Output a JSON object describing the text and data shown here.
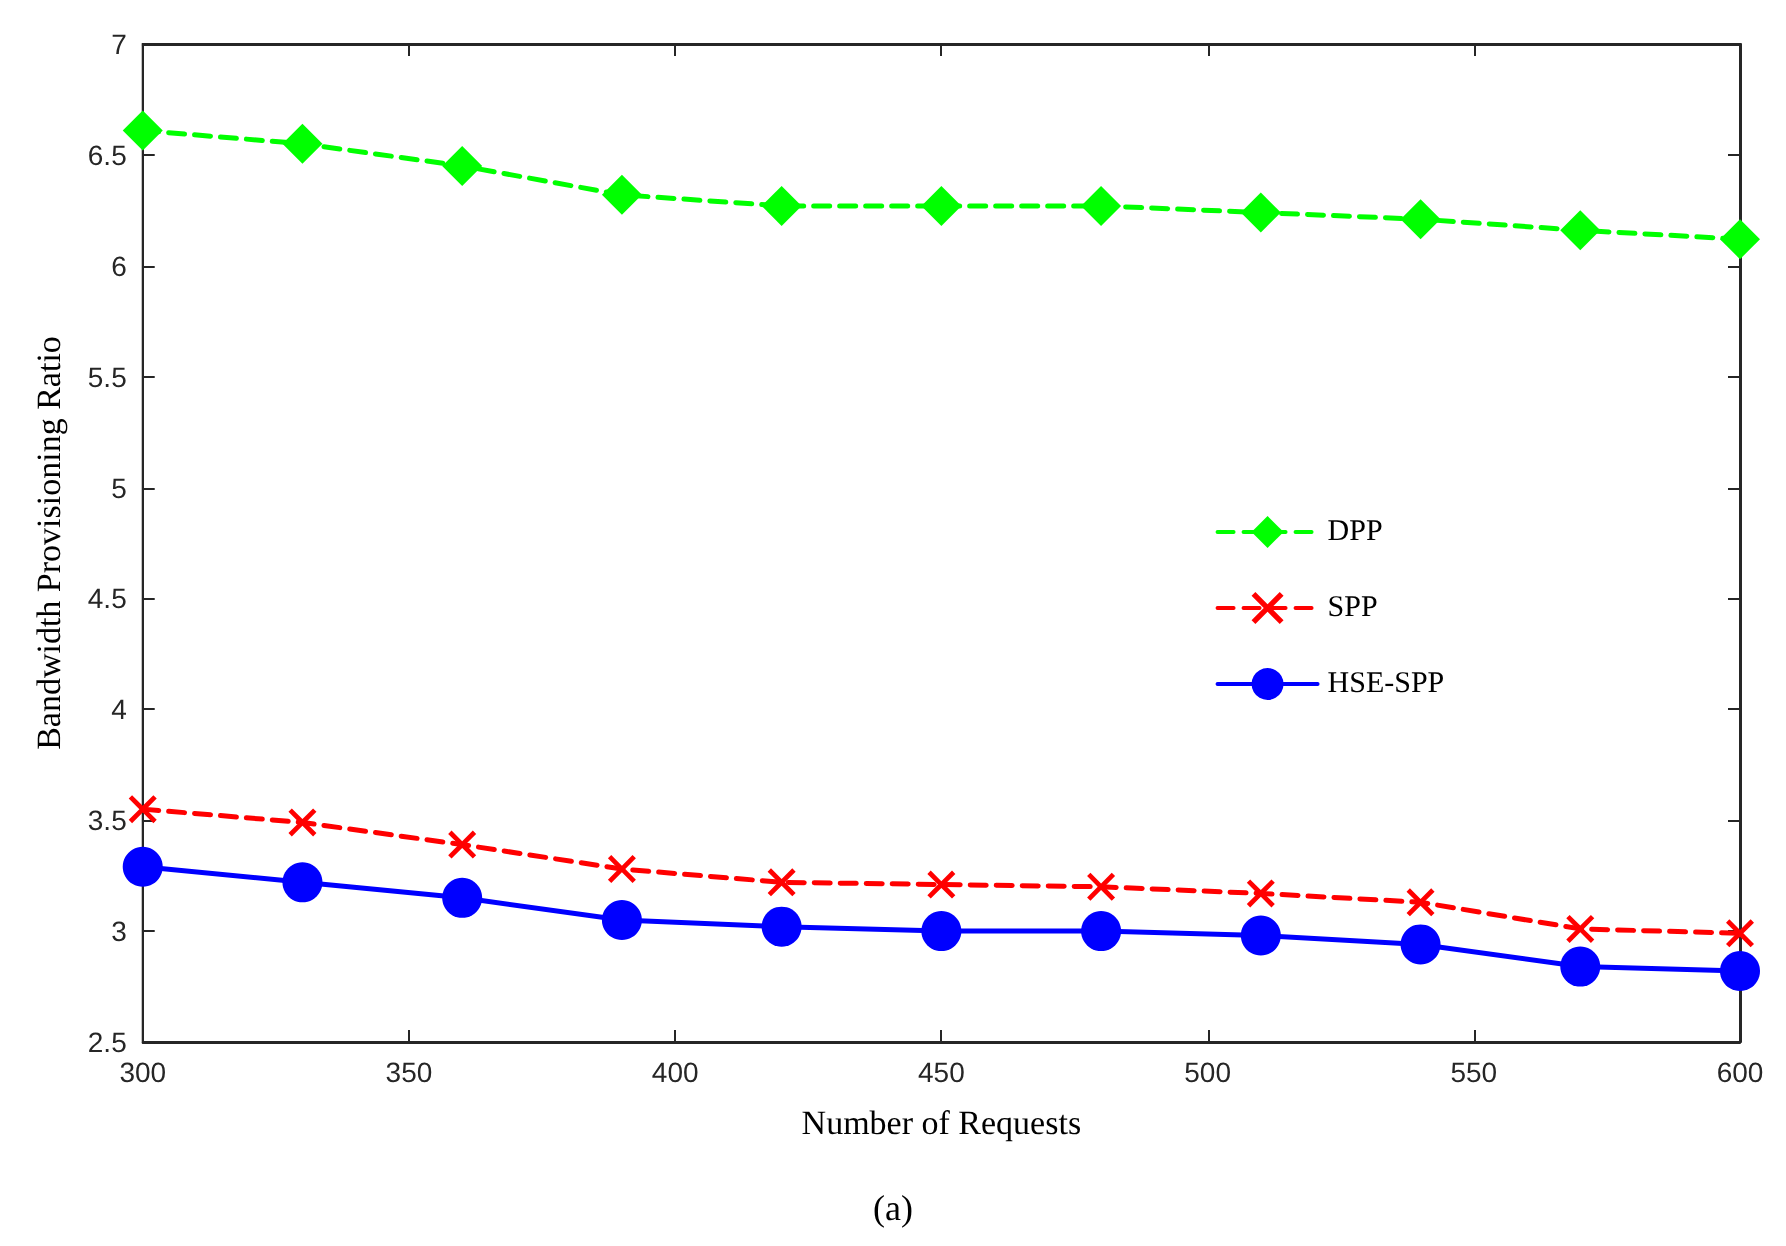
{
  "chart_data": {
    "type": "line",
    "xlabel": "Number of Requests",
    "ylabel": "Bandwidth Provisioning Ratio",
    "annotations": [
      "(a)"
    ],
    "x": [
      300,
      330,
      360,
      390,
      420,
      450,
      480,
      510,
      540,
      570,
      600
    ],
    "xlim": [
      300,
      600
    ],
    "xticks": [
      300,
      350,
      400,
      450,
      500,
      550,
      600
    ],
    "ylim": [
      2.5,
      7
    ],
    "yticks": [
      2.5,
      3,
      3.5,
      4,
      4.5,
      5,
      5.5,
      6,
      6.5,
      7
    ],
    "grid": false,
    "legend": "right",
    "series": [
      {
        "name": "DPP",
        "color": "#00ff00",
        "marker": "diamond",
        "line_style": "dashed",
        "values": [
          6.61,
          6.55,
          6.45,
          6.32,
          6.27,
          6.27,
          6.27,
          6.24,
          6.21,
          6.16,
          6.12
        ]
      },
      {
        "name": "SPP",
        "color": "#ff0000",
        "marker": "cross",
        "line_style": "dashed",
        "values": [
          3.55,
          3.49,
          3.39,
          3.28,
          3.22,
          3.21,
          3.2,
          3.17,
          3.13,
          3.01,
          2.99
        ]
      },
      {
        "name": "HSE-SPP",
        "color": "#0000ff",
        "marker": "circle",
        "line_style": "solid",
        "values": [
          3.29,
          3.22,
          3.15,
          3.05,
          3.02,
          3.0,
          3.0,
          2.98,
          2.94,
          2.84,
          2.82
        ]
      }
    ]
  }
}
